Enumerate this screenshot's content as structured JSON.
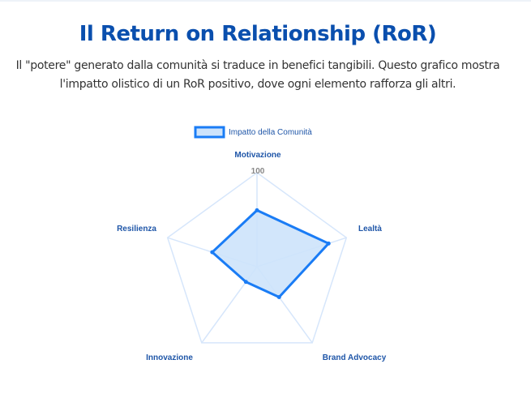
{
  "header": {
    "title": "Il Return on Relationship (RoR)",
    "subtitle_line1": "Il \"potere\" generato dalla comunità si traduce in benefici tangibili. Questo grafico mostra",
    "subtitle_line2": "l'impatto olistico di un RoR positivo, dove ogni elemento rafforza gli altri."
  },
  "chart_data": {
    "type": "radar",
    "categories": [
      "Motivazione",
      "Lealtà",
      "Brand Advocacy",
      "Innovazione",
      "Resilienza"
    ],
    "series": [
      {
        "name": "Impatto della Comunità",
        "values": [
          60,
          80,
          40,
          20,
          50
        ]
      }
    ],
    "rlim": [
      0,
      100
    ],
    "tick_labels": [
      "100"
    ],
    "legend_position": "top",
    "colors": {
      "line": "#1a7cf5",
      "fill": "#cde3fb",
      "grid": "#d6e6fb",
      "label": "#1f56a8"
    }
  }
}
